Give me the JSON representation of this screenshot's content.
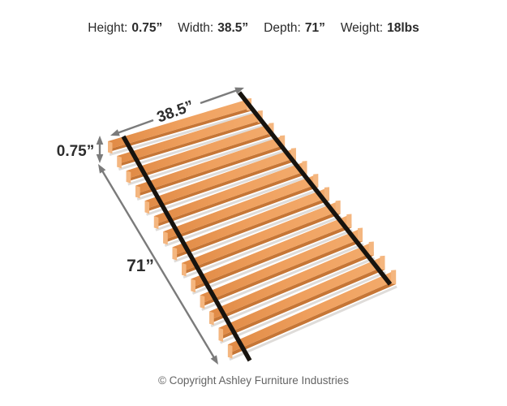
{
  "header": {
    "specs": [
      {
        "label": "Height:",
        "value": "0.75”"
      },
      {
        "label": "Width:",
        "value": "38.5”"
      },
      {
        "label": "Depth:",
        "value": "71”"
      },
      {
        "label": "Weight:",
        "value": "18lbs"
      }
    ]
  },
  "figure": {
    "product": "wooden-roll-slats-with-straps",
    "slat_count": 14,
    "strap_count": 2,
    "width_label": "38.5”",
    "height_label": "0.75”",
    "depth_label": "71”",
    "colors": {
      "wood_top_dark": "#e08a45",
      "wood_top": "#efa05e",
      "wood_top_light": "#f3ab6c",
      "wood_edge": "#c67636",
      "wood_end": "#f4b67f",
      "strap": "#17130e",
      "dim_arrow": "#7b7b7b",
      "dim_text": "#2d2d2d",
      "shadow": "rgba(150,140,130,0.30)"
    }
  },
  "footer": {
    "copyright": "© Copyright Ashley Furniture Industries"
  }
}
